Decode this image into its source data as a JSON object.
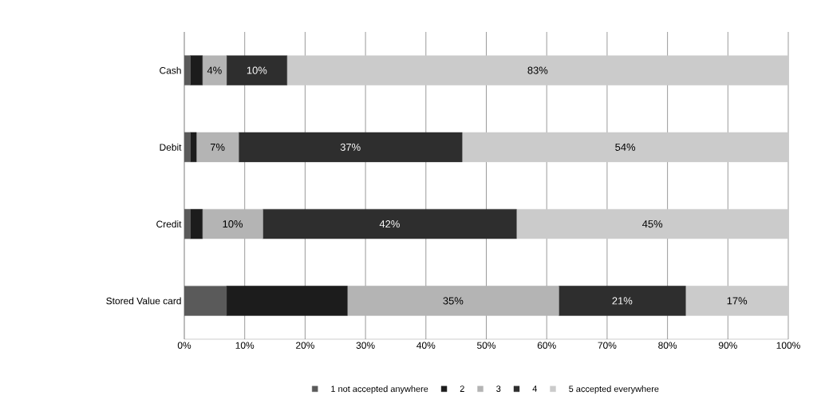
{
  "chart_data": {
    "type": "bar",
    "orientation": "horizontal",
    "stacked": true,
    "categories": [
      "Cash",
      "Debit",
      "Credit",
      "Stored Value card"
    ],
    "series": [
      {
        "name": "1 not accepted anywhere",
        "color": "#5a5a5a",
        "values": [
          1,
          1,
          1,
          7
        ],
        "value_labels": [
          null,
          null,
          null,
          null
        ]
      },
      {
        "name": "2",
        "color": "#1c1c1c",
        "values": [
          2,
          1,
          2,
          20
        ],
        "value_labels": [
          null,
          null,
          null,
          null
        ]
      },
      {
        "name": "3",
        "color": "#b4b4b4",
        "values": [
          4,
          7,
          10,
          35
        ],
        "value_labels": [
          "4%",
          "7%",
          "10%",
          "35%"
        ]
      },
      {
        "name": "4",
        "color": "#2e2e2e",
        "values": [
          10,
          37,
          42,
          21
        ],
        "value_labels": [
          "10%",
          "37%",
          "42%",
          "21%"
        ]
      },
      {
        "name": "5 accepted everywhere",
        "color": "#cbcbcb",
        "values": [
          83,
          54,
          45,
          17
        ],
        "value_labels": [
          "83%",
          "54%",
          "45%",
          "17%"
        ]
      }
    ],
    "xlim": [
      0,
      100
    ],
    "xticks": [
      {
        "value": 0,
        "label": "0%"
      },
      {
        "value": 10,
        "label": "10%"
      },
      {
        "value": 20,
        "label": "20%"
      },
      {
        "value": 30,
        "label": "30%"
      },
      {
        "value": 40,
        "label": "40%"
      },
      {
        "value": 50,
        "label": "50%"
      },
      {
        "value": 60,
        "label": "60%"
      },
      {
        "value": 70,
        "label": "70%"
      },
      {
        "value": 80,
        "label": "80%"
      },
      {
        "value": 90,
        "label": "90%"
      },
      {
        "value": 100,
        "label": "100%"
      }
    ],
    "grid": "x",
    "legend": "bottom"
  }
}
